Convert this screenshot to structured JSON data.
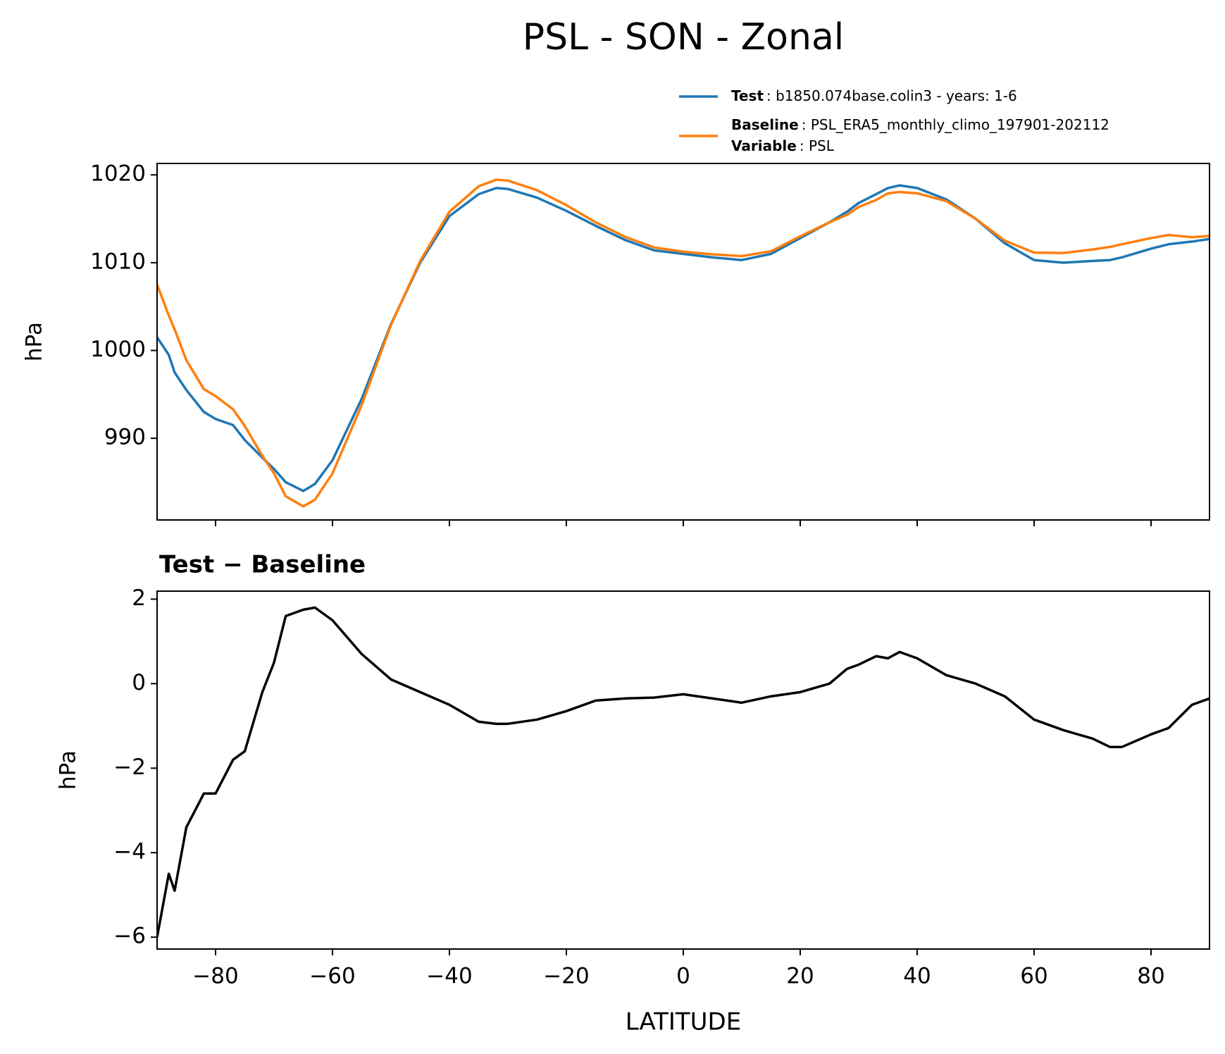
{
  "chart_data": [
    {
      "type": "line",
      "title": "PSL - SON - Zonal",
      "ylabel": "hPa",
      "x": [
        -90,
        -88,
        -87,
        -85,
        -82,
        -80,
        -77,
        -75,
        -72,
        -70,
        -68,
        -65,
        -63,
        -60,
        -55,
        -50,
        -45,
        -40,
        -35,
        -32,
        -30,
        -25,
        -20,
        -15,
        -10,
        -5,
        0,
        5,
        10,
        15,
        20,
        25,
        28,
        30,
        33,
        35,
        37,
        40,
        45,
        50,
        55,
        60,
        65,
        70,
        73,
        75,
        80,
        83,
        87,
        90
      ],
      "series": [
        {
          "name": "Test",
          "description": ": b1850.074base.colin3 - years: 1-6",
          "color": "#1f77b4",
          "values": [
            1001.5,
            999.5,
            997.5,
            995.5,
            993,
            992.2,
            991.5,
            989.8,
            987.8,
            986.5,
            985,
            984,
            984.8,
            987.5,
            994.5,
            1003,
            1010,
            1015.3,
            1017.8,
            1018.5,
            1018.4,
            1017.4,
            1015.9,
            1014.2,
            1012.6,
            1011.4,
            1011.0,
            1010.6,
            1010.3,
            1011.0,
            1012.8,
            1014.6,
            1015.8,
            1016.8,
            1017.8,
            1018.5,
            1018.8,
            1018.5,
            1017.2,
            1015,
            1012.2,
            1010.3,
            1010.0,
            1010.2,
            1010.3,
            1010.6,
            1011.6,
            1012.1,
            1012.4,
            1012.7
          ]
        },
        {
          "name": "Baseline",
          "description": ": PSL_ERA5_monthly_climo_197901-202112",
          "color": "#ff7f0e",
          "values": [
            1007.5,
            1004.0,
            1002.4,
            998.9,
            995.6,
            994.8,
            993.3,
            991.4,
            988.0,
            986.0,
            983.4,
            982.25,
            983.0,
            986.0,
            993.8,
            1002.9,
            1010.2,
            1015.8,
            1018.7,
            1019.45,
            1019.35,
            1018.25,
            1016.55,
            1014.6,
            1012.95,
            1011.73,
            1011.25,
            1010.95,
            1010.75,
            1011.3,
            1013.0,
            1014.6,
            1015.45,
            1016.35,
            1017.15,
            1017.9,
            1018.05,
            1017.9,
            1017.0,
            1015.0,
            1012.5,
            1011.15,
            1011.1,
            1011.5,
            1011.8,
            1012.1,
            1012.8,
            1013.15,
            1012.9,
            1013.05
          ]
        }
      ],
      "legend_note": {
        "name": "Variable",
        "description": ": PSL"
      },
      "xlim": [
        -90,
        90
      ],
      "xticks": [
        -80,
        -60,
        -40,
        -20,
        0,
        20,
        40,
        60,
        80
      ],
      "ylim": [
        980.7,
        1021.3
      ],
      "yticks": [
        990,
        1000,
        1010,
        1020
      ]
    },
    {
      "type": "line",
      "title": "Test − Baseline",
      "ylabel": "hPa",
      "xlabel": "LATITUDE",
      "x": [
        -90,
        -88,
        -87,
        -85,
        -82,
        -80,
        -77,
        -75,
        -72,
        -70,
        -68,
        -65,
        -63,
        -60,
        -55,
        -50,
        -45,
        -40,
        -35,
        -32,
        -30,
        -25,
        -20,
        -15,
        -10,
        -5,
        0,
        5,
        10,
        15,
        20,
        25,
        28,
        30,
        33,
        35,
        37,
        40,
        45,
        50,
        55,
        60,
        65,
        70,
        73,
        75,
        80,
        83,
        87,
        90
      ],
      "series": [
        {
          "color": "#000000",
          "values": [
            -6,
            -4.5,
            -4.9,
            -3.4,
            -2.6,
            -2.6,
            -1.8,
            -1.6,
            -0.2,
            0.5,
            1.6,
            1.75,
            1.8,
            1.5,
            0.7,
            0.1,
            -0.2,
            -0.5,
            -0.9,
            -0.95,
            -0.95,
            -0.85,
            -0.65,
            -0.4,
            -0.35,
            -0.33,
            -0.25,
            -0.35,
            -0.45,
            -0.3,
            -0.2,
            0,
            0.35,
            0.45,
            0.65,
            0.6,
            0.75,
            0.6,
            0.2,
            0,
            -0.3,
            -0.85,
            -1.1,
            -1.3,
            -1.5,
            -1.5,
            -1.2,
            -1.05,
            -0.5,
            -0.35
          ]
        }
      ],
      "xlim": [
        -90,
        90
      ],
      "xticks": [
        {
          "value": -80,
          "label": "−80"
        },
        {
          "value": -60,
          "label": "−60"
        },
        {
          "value": -40,
          "label": "−40"
        },
        {
          "value": -20,
          "label": "−20"
        },
        0,
        20,
        40,
        60,
        80
      ],
      "ylim": [
        -6.28,
        2.19
      ],
      "yticks": [
        {
          "value": -6,
          "label": "−6"
        },
        {
          "value": -4,
          "label": "−4"
        },
        {
          "value": -2,
          "label": "−2"
        },
        0,
        2
      ]
    }
  ]
}
